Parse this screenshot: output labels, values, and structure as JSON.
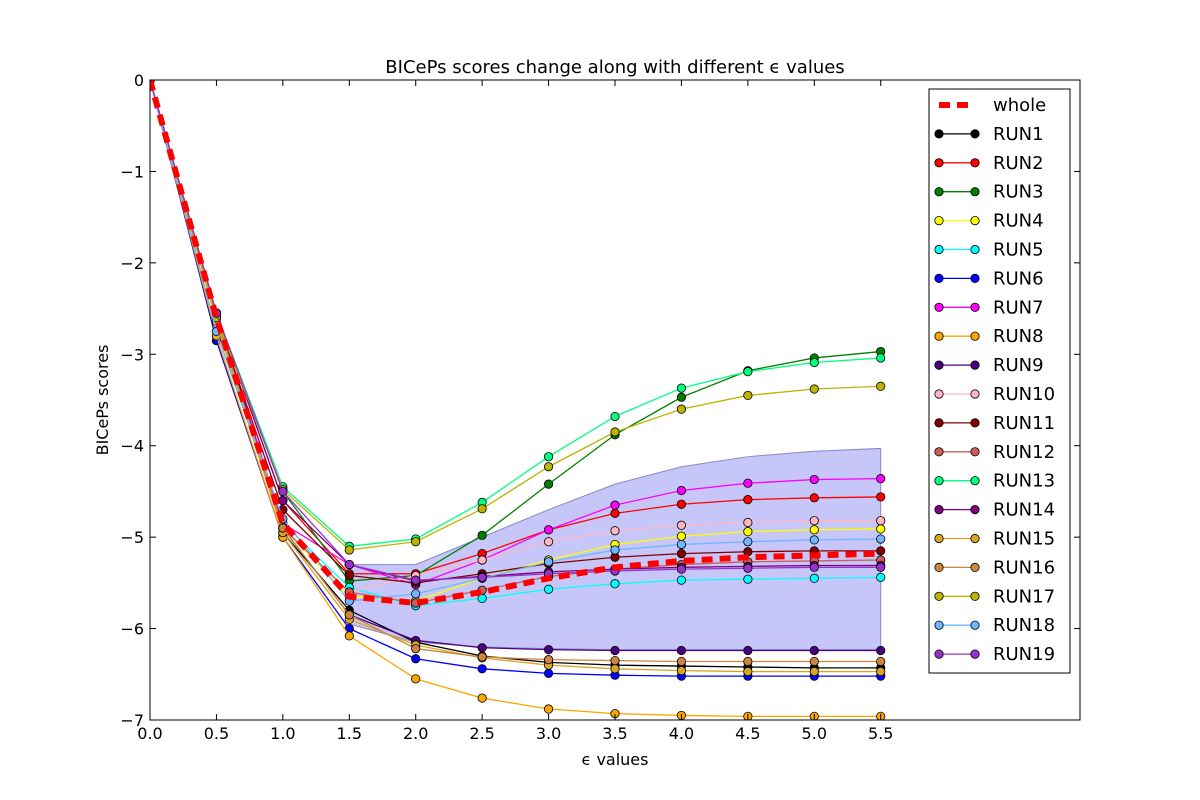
{
  "chart_data": {
    "type": "line",
    "title": "BICePs scores change along with different ϵ values",
    "xlabel": "ϵ values",
    "ylabel": "BICePs scores",
    "xlim": [
      0.0,
      7.0
    ],
    "ylim": [
      -7,
      0
    ],
    "xticks": [
      "0.0",
      "0.5",
      "1.0",
      "1.5",
      "2.0",
      "2.5",
      "3.0",
      "3.5",
      "4.0",
      "4.5",
      "5.0",
      "5.5"
    ],
    "yticks": [
      "0",
      "−1",
      "−2",
      "−3",
      "−4",
      "−5",
      "−6",
      "−7"
    ],
    "grid": false,
    "legend_position": "top-right",
    "x": [
      0.0,
      0.5,
      1.0,
      1.5,
      2.0,
      2.5,
      3.0,
      3.5,
      4.0,
      4.5,
      5.0,
      5.5
    ],
    "band": {
      "x": [
        1.5,
        2.0,
        2.5,
        3.0,
        3.5,
        4.0,
        4.5,
        5.0,
        5.5
      ],
      "upper": [
        -5.3,
        -5.3,
        -5.0,
        -4.7,
        -4.42,
        -4.23,
        -4.12,
        -4.06,
        -4.03
      ],
      "lower": [
        -5.95,
        -6.15,
        -6.2,
        -6.22,
        -6.23,
        -6.23,
        -6.23,
        -6.23,
        -6.23
      ],
      "color": "#b3b3f5"
    },
    "whole": {
      "name": "whole",
      "color": "#ff0000",
      "x": [
        0.0,
        0.5,
        1.0,
        1.5,
        2.0,
        2.5,
        3.0,
        3.5,
        4.0,
        4.5,
        5.0,
        5.5
      ],
      "values": [
        0,
        -2.6,
        -4.85,
        -5.65,
        -5.72,
        -5.6,
        -5.45,
        -5.33,
        -5.26,
        -5.22,
        -5.2,
        -5.18
      ]
    },
    "series": [
      {
        "name": "RUN1",
        "color": "#000000",
        "values": [
          0,
          -2.55,
          -4.95,
          -5.8,
          -6.15,
          -6.3,
          -6.37,
          -6.4,
          -6.41,
          -6.42,
          -6.43,
          -6.43
        ]
      },
      {
        "name": "RUN2",
        "color": "#ff0000",
        "values": [
          0,
          -2.55,
          -4.6,
          -5.4,
          -5.4,
          -5.18,
          -4.92,
          -4.74,
          -4.64,
          -4.59,
          -4.57,
          -4.56
        ]
      },
      {
        "name": "RUN3",
        "color": "#008000",
        "values": [
          0,
          -2.55,
          -4.5,
          -5.48,
          -5.42,
          -4.98,
          -4.42,
          -3.88,
          -3.47,
          -3.18,
          -3.04,
          -2.97
        ]
      },
      {
        "name": "RUN4",
        "color": "#ffff00",
        "values": [
          0,
          -2.6,
          -4.9,
          -5.65,
          -5.7,
          -5.45,
          -5.25,
          -5.08,
          -4.99,
          -4.94,
          -4.92,
          -4.91
        ]
      },
      {
        "name": "RUN5",
        "color": "#00ffff",
        "values": [
          0,
          -2.75,
          -4.85,
          -5.55,
          -5.75,
          -5.67,
          -5.57,
          -5.51,
          -5.47,
          -5.46,
          -5.45,
          -5.44
        ]
      },
      {
        "name": "RUN6",
        "color": "#0000ff",
        "values": [
          0,
          -2.85,
          -5.0,
          -6.0,
          -6.33,
          -6.44,
          -6.49,
          -6.51,
          -6.52,
          -6.52,
          -6.52,
          -6.52
        ]
      },
      {
        "name": "RUN7",
        "color": "#ff00ff",
        "values": [
          0,
          -2.55,
          -4.85,
          -5.3,
          -5.52,
          -5.25,
          -4.92,
          -4.65,
          -4.49,
          -4.41,
          -4.37,
          -4.36
        ]
      },
      {
        "name": "RUN8",
        "color": "#ffa500",
        "values": [
          0,
          -2.8,
          -5.0,
          -6.08,
          -6.55,
          -6.76,
          -6.88,
          -6.93,
          -6.95,
          -6.96,
          -6.96,
          -6.96
        ]
      },
      {
        "name": "RUN9",
        "color": "#4b0082",
        "values": [
          0,
          -2.55,
          -4.9,
          -5.85,
          -6.13,
          -6.21,
          -6.23,
          -6.24,
          -6.24,
          -6.24,
          -6.24,
          -6.24
        ]
      },
      {
        "name": "RUN10",
        "color": "#ffb6c1",
        "values": [
          0,
          -2.6,
          -4.9,
          -5.6,
          -5.42,
          -5.25,
          -5.05,
          -4.93,
          -4.87,
          -4.84,
          -4.82,
          -4.82
        ]
      },
      {
        "name": "RUN11",
        "color": "#800000",
        "values": [
          0,
          -2.6,
          -4.7,
          -5.42,
          -5.5,
          -5.4,
          -5.29,
          -5.22,
          -5.18,
          -5.16,
          -5.15,
          -5.15
        ]
      },
      {
        "name": "RUN12",
        "color": "#cd5c5c",
        "values": [
          0,
          -2.6,
          -4.9,
          -5.6,
          -5.72,
          -5.58,
          -5.43,
          -5.35,
          -5.3,
          -5.27,
          -5.26,
          -5.25
        ]
      },
      {
        "name": "RUN13",
        "color": "#00ff7f",
        "values": [
          0,
          -2.55,
          -4.45,
          -5.1,
          -5.02,
          -4.62,
          -4.12,
          -3.68,
          -3.37,
          -3.19,
          -3.09,
          -3.04
        ]
      },
      {
        "name": "RUN14",
        "color": "#800080",
        "values": [
          0,
          -2.55,
          -4.6,
          -5.3,
          -5.48,
          -5.43,
          -5.38,
          -5.35,
          -5.33,
          -5.32,
          -5.31,
          -5.31
        ]
      },
      {
        "name": "RUN15",
        "color": "#daa520",
        "values": [
          0,
          -2.65,
          -4.95,
          -5.9,
          -6.18,
          -6.32,
          -6.4,
          -6.44,
          -6.46,
          -6.47,
          -6.47,
          -6.47
        ]
      },
      {
        "name": "RUN16",
        "color": "#cd853f",
        "values": [
          0,
          -2.6,
          -4.9,
          -5.85,
          -6.22,
          -6.31,
          -6.34,
          -6.35,
          -6.36,
          -6.36,
          -6.36,
          -6.36
        ]
      },
      {
        "name": "RUN17",
        "color": "#bdb400",
        "values": [
          0,
          -2.6,
          -4.48,
          -5.14,
          -5.05,
          -4.69,
          -4.23,
          -3.85,
          -3.6,
          -3.45,
          -3.38,
          -3.35
        ]
      },
      {
        "name": "RUN18",
        "color": "#6fb6ff",
        "values": [
          0,
          -2.75,
          -4.8,
          -5.7,
          -5.62,
          -5.45,
          -5.27,
          -5.14,
          -5.08,
          -5.05,
          -5.03,
          -5.02
        ]
      },
      {
        "name": "RUN19",
        "color": "#9932cc",
        "values": [
          0,
          -2.55,
          -4.5,
          -5.3,
          -5.47,
          -5.44,
          -5.4,
          -5.37,
          -5.35,
          -5.34,
          -5.33,
          -5.33
        ]
      }
    ]
  }
}
